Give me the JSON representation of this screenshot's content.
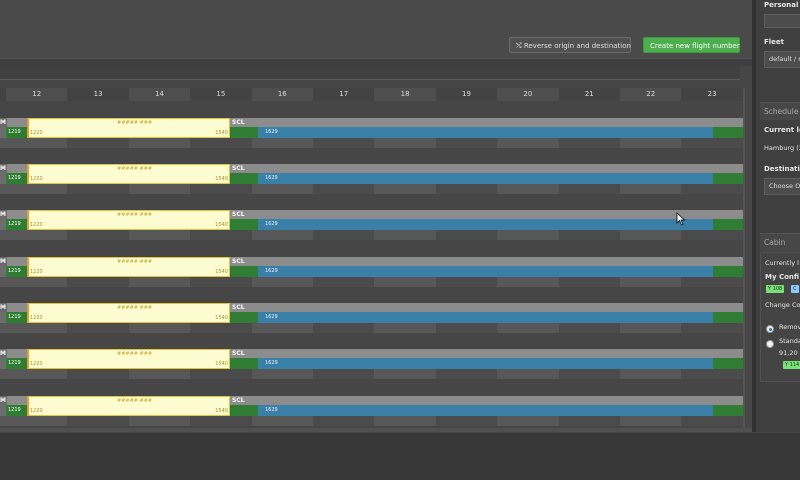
{
  "toolbar": {
    "reverse_label": "Reverse origin and destination",
    "create_label": "Create new flight number"
  },
  "timeline": {
    "hours": [
      "12",
      "13",
      "14",
      "15",
      "16",
      "17",
      "18",
      "19",
      "20",
      "21",
      "22",
      "23"
    ]
  },
  "rows": [
    {
      "left_label": "M",
      "left_time": "1219",
      "dep": "1220",
      "flight": "##### ###",
      "arr": "1540",
      "stop": "SCL",
      "next_dep": "1629"
    },
    {
      "left_label": "M",
      "left_time": "1219",
      "dep": "1220",
      "flight": "##### ###",
      "arr": "1540",
      "stop": "SCL",
      "next_dep": "1629"
    },
    {
      "left_label": "M",
      "left_time": "1219",
      "dep": "1220",
      "flight": "##### ###",
      "arr": "1540",
      "stop": "SCL",
      "next_dep": "1629"
    },
    {
      "left_label": "M",
      "left_time": "1219",
      "dep": "1220",
      "flight": "##### ###",
      "arr": "1540",
      "stop": "SCL",
      "next_dep": "1629"
    },
    {
      "left_label": "M",
      "left_time": "1219",
      "dep": "1220",
      "flight": "##### ###",
      "arr": "1540",
      "stop": "SCL",
      "next_dep": "1629"
    },
    {
      "left_label": "M",
      "left_time": "1219",
      "dep": "1220",
      "flight": "##### ###",
      "arr": "1540",
      "stop": "SCL",
      "next_dep": "1629"
    },
    {
      "left_label": "M",
      "left_time": "1219",
      "dep": "1220",
      "flight": "##### ###",
      "arr": "1540",
      "stop": "SCL",
      "next_dep": "1629"
    }
  ],
  "panel": {
    "personal_label": "Personal r",
    "fleet_label": "Fleet",
    "fleet_value": "default / r",
    "schedule_head": "Schedule",
    "current_loc_label": "Current lo",
    "current_loc_value": "Hamburg (X",
    "destination_label": "Destinatio",
    "destination_value": "Choose O",
    "cabin_head": "Cabin",
    "currently_label": "Currently l",
    "my_config_label": "My Confi",
    "badge_y": "Y 108",
    "badge_c": "C",
    "change_label": "Change Co",
    "option_remove": "Remov",
    "option_standard": "Standa",
    "option_standard_sub": "91,20",
    "badge_y2": "Y 114"
  }
}
